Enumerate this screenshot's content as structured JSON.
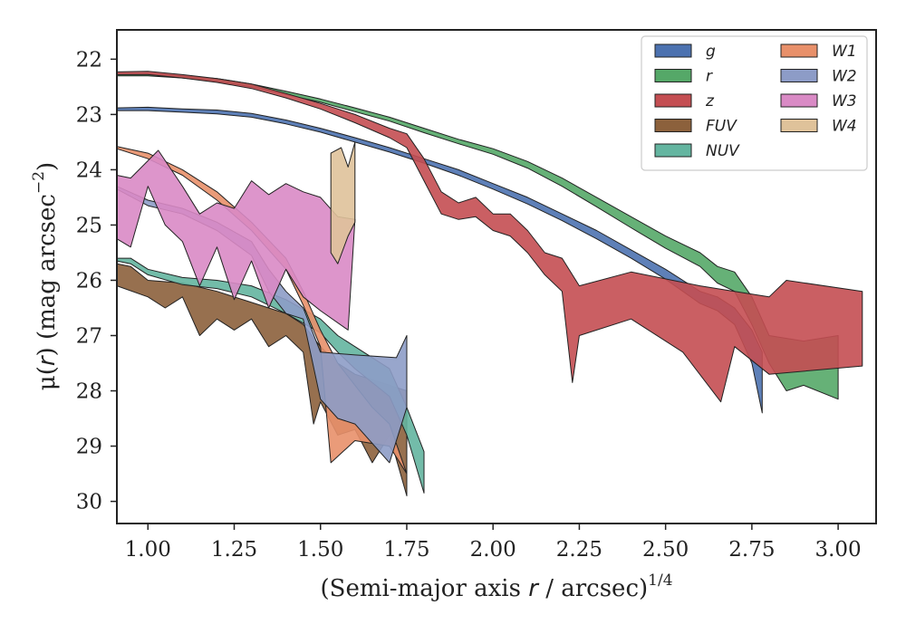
{
  "chart_data": {
    "type": "area",
    "xlabel_main": "(Semi-major axis ",
    "xlabel_var": "r",
    "xlabel_tail": " / arcsec)",
    "xlabel_exp": "1/4",
    "ylabel_main": "μ(",
    "ylabel_var": "r",
    "ylabel_tail": ") (mag arcsec",
    "ylabel_exp": "−2",
    "ylabel_close": ")",
    "xlim": [
      0.91,
      3.11
    ],
    "ylim": [
      30.4,
      21.47
    ],
    "y_inverted": true,
    "grid": false,
    "legend_position": "top-right",
    "xticks": [
      1.0,
      1.25,
      1.5,
      1.75,
      2.0,
      2.25,
      2.5,
      2.75,
      3.0
    ],
    "xtick_labels": [
      "1.00",
      "1.25",
      "1.50",
      "1.75",
      "2.00",
      "2.25",
      "2.50",
      "2.75",
      "3.00"
    ],
    "yticks": [
      22,
      23,
      24,
      25,
      26,
      27,
      28,
      29,
      30
    ],
    "ytick_labels": [
      "22",
      "23",
      "24",
      "25",
      "26",
      "27",
      "28",
      "29",
      "30"
    ],
    "series": [
      {
        "name": "g",
        "color": "#4c72b0",
        "upper": [
          [
            0.91,
            22.88
          ],
          [
            1.0,
            22.87
          ],
          [
            1.1,
            22.9
          ],
          [
            1.2,
            22.92
          ],
          [
            1.3,
            22.98
          ],
          [
            1.4,
            23.1
          ],
          [
            1.5,
            23.25
          ],
          [
            1.6,
            23.42
          ],
          [
            1.7,
            23.6
          ],
          [
            1.8,
            23.8
          ],
          [
            1.9,
            24.0
          ],
          [
            2.0,
            24.25
          ],
          [
            2.1,
            24.5
          ],
          [
            2.2,
            24.8
          ],
          [
            2.3,
            25.1
          ],
          [
            2.4,
            25.45
          ],
          [
            2.5,
            25.8
          ],
          [
            2.55,
            26.0
          ],
          [
            2.6,
            26.2
          ],
          [
            2.65,
            26.3
          ],
          [
            2.7,
            26.5
          ],
          [
            2.75,
            26.9
          ],
          [
            2.78,
            27.3
          ]
        ],
        "lower": [
          [
            0.91,
            22.93
          ],
          [
            1.0,
            22.93
          ],
          [
            1.1,
            22.96
          ],
          [
            1.2,
            22.99
          ],
          [
            1.3,
            23.05
          ],
          [
            1.4,
            23.17
          ],
          [
            1.5,
            23.32
          ],
          [
            1.6,
            23.5
          ],
          [
            1.7,
            23.68
          ],
          [
            1.8,
            23.88
          ],
          [
            1.9,
            24.1
          ],
          [
            2.0,
            24.35
          ],
          [
            2.1,
            24.62
          ],
          [
            2.2,
            24.92
          ],
          [
            2.3,
            25.25
          ],
          [
            2.4,
            25.6
          ],
          [
            2.5,
            25.98
          ],
          [
            2.55,
            26.2
          ],
          [
            2.6,
            26.42
          ],
          [
            2.65,
            26.55
          ],
          [
            2.7,
            26.8
          ],
          [
            2.75,
            27.5
          ],
          [
            2.78,
            28.4
          ]
        ]
      },
      {
        "name": "r",
        "color": "#55a868",
        "upper": [
          [
            0.91,
            22.27
          ],
          [
            1.0,
            22.26
          ],
          [
            1.1,
            22.3
          ],
          [
            1.2,
            22.35
          ],
          [
            1.3,
            22.45
          ],
          [
            1.4,
            22.58
          ],
          [
            1.5,
            22.72
          ],
          [
            1.6,
            22.88
          ],
          [
            1.7,
            23.05
          ],
          [
            1.8,
            23.25
          ],
          [
            1.9,
            23.45
          ],
          [
            2.0,
            23.62
          ],
          [
            2.1,
            23.85
          ],
          [
            2.2,
            24.15
          ],
          [
            2.3,
            24.5
          ],
          [
            2.4,
            24.85
          ],
          [
            2.5,
            25.2
          ],
          [
            2.6,
            25.5
          ],
          [
            2.65,
            25.75
          ],
          [
            2.7,
            25.85
          ],
          [
            2.75,
            26.3
          ],
          [
            2.8,
            27.0
          ],
          [
            2.9,
            27.1
          ],
          [
            3.0,
            27.0
          ]
        ],
        "lower": [
          [
            0.91,
            22.3
          ],
          [
            1.0,
            22.3
          ],
          [
            1.1,
            22.34
          ],
          [
            1.2,
            22.4
          ],
          [
            1.3,
            22.5
          ],
          [
            1.4,
            22.64
          ],
          [
            1.5,
            22.78
          ],
          [
            1.6,
            22.95
          ],
          [
            1.7,
            23.12
          ],
          [
            1.8,
            23.33
          ],
          [
            1.9,
            23.53
          ],
          [
            2.0,
            23.72
          ],
          [
            2.1,
            23.97
          ],
          [
            2.2,
            24.3
          ],
          [
            2.3,
            24.67
          ],
          [
            2.4,
            25.05
          ],
          [
            2.5,
            25.42
          ],
          [
            2.6,
            25.75
          ],
          [
            2.65,
            26.05
          ],
          [
            2.7,
            26.2
          ],
          [
            2.75,
            26.8
          ],
          [
            2.8,
            27.5
          ],
          [
            2.85,
            28.0
          ],
          [
            2.9,
            27.9
          ],
          [
            3.0,
            28.15
          ]
        ]
      },
      {
        "name": "z",
        "color": "#c44e52",
        "upper": [
          [
            0.91,
            22.23
          ],
          [
            1.0,
            22.22
          ],
          [
            1.1,
            22.28
          ],
          [
            1.2,
            22.35
          ],
          [
            1.3,
            22.45
          ],
          [
            1.4,
            22.62
          ],
          [
            1.5,
            22.8
          ],
          [
            1.6,
            23.0
          ],
          [
            1.7,
            23.25
          ],
          [
            1.75,
            23.35
          ],
          [
            1.8,
            23.8
          ],
          [
            1.85,
            24.4
          ],
          [
            1.9,
            24.6
          ],
          [
            1.95,
            24.5
          ],
          [
            2.0,
            24.8
          ],
          [
            2.05,
            24.8
          ],
          [
            2.1,
            25.1
          ],
          [
            2.15,
            25.5
          ],
          [
            2.2,
            25.6
          ],
          [
            2.25,
            26.1
          ],
          [
            2.4,
            25.85
          ],
          [
            2.6,
            26.1
          ],
          [
            2.7,
            26.2
          ],
          [
            2.8,
            26.3
          ],
          [
            2.85,
            26.0
          ],
          [
            3.07,
            26.2
          ]
        ],
        "lower": [
          [
            0.91,
            22.28
          ],
          [
            1.0,
            22.28
          ],
          [
            1.1,
            22.34
          ],
          [
            1.2,
            22.42
          ],
          [
            1.3,
            22.53
          ],
          [
            1.4,
            22.7
          ],
          [
            1.5,
            22.9
          ],
          [
            1.6,
            23.15
          ],
          [
            1.7,
            23.42
          ],
          [
            1.75,
            23.6
          ],
          [
            1.8,
            24.2
          ],
          [
            1.85,
            24.8
          ],
          [
            1.9,
            24.9
          ],
          [
            1.95,
            24.85
          ],
          [
            2.0,
            25.1
          ],
          [
            2.05,
            25.2
          ],
          [
            2.1,
            25.5
          ],
          [
            2.15,
            25.9
          ],
          [
            2.2,
            26.2
          ],
          [
            2.23,
            27.85
          ],
          [
            2.25,
            27.0
          ],
          [
            2.4,
            26.7
          ],
          [
            2.55,
            27.3
          ],
          [
            2.66,
            28.2
          ],
          [
            2.7,
            27.2
          ],
          [
            2.8,
            27.7
          ],
          [
            3.07,
            27.55
          ]
        ]
      },
      {
        "name": "FUV",
        "color": "#8c613c",
        "upper": [
          [
            0.91,
            25.7
          ],
          [
            0.95,
            25.75
          ],
          [
            1.0,
            26.0
          ],
          [
            1.1,
            26.05
          ],
          [
            1.2,
            26.2
          ],
          [
            1.3,
            26.4
          ],
          [
            1.35,
            26.5
          ],
          [
            1.4,
            26.6
          ],
          [
            1.45,
            26.8
          ],
          [
            1.5,
            27.2
          ],
          [
            1.55,
            27.5
          ],
          [
            1.6,
            27.7
          ],
          [
            1.7,
            27.9
          ],
          [
            1.75,
            28.0
          ]
        ],
        "lower": [
          [
            0.91,
            26.1
          ],
          [
            1.0,
            26.3
          ],
          [
            1.05,
            26.5
          ],
          [
            1.1,
            26.3
          ],
          [
            1.15,
            27.0
          ],
          [
            1.2,
            26.7
          ],
          [
            1.25,
            26.9
          ],
          [
            1.3,
            26.7
          ],
          [
            1.35,
            27.2
          ],
          [
            1.4,
            27.0
          ],
          [
            1.45,
            27.3
          ],
          [
            1.48,
            28.6
          ],
          [
            1.5,
            28.2
          ],
          [
            1.55,
            28.8
          ],
          [
            1.6,
            28.7
          ],
          [
            1.65,
            29.3
          ],
          [
            1.7,
            28.8
          ],
          [
            1.75,
            29.9
          ]
        ]
      },
      {
        "name": "NUV",
        "color": "#64b5a0",
        "upper": [
          [
            0.91,
            25.6
          ],
          [
            0.95,
            25.6
          ],
          [
            1.0,
            25.8
          ],
          [
            1.1,
            25.95
          ],
          [
            1.2,
            26.0
          ],
          [
            1.3,
            26.1
          ],
          [
            1.4,
            26.35
          ],
          [
            1.5,
            26.7
          ],
          [
            1.55,
            27.0
          ],
          [
            1.6,
            27.2
          ],
          [
            1.7,
            27.6
          ],
          [
            1.75,
            28.3
          ],
          [
            1.8,
            29.1
          ]
        ],
        "lower": [
          [
            0.91,
            25.65
          ],
          [
            0.95,
            25.7
          ],
          [
            1.0,
            25.9
          ],
          [
            1.1,
            26.08
          ],
          [
            1.2,
            26.15
          ],
          [
            1.3,
            26.3
          ],
          [
            1.4,
            26.6
          ],
          [
            1.5,
            26.95
          ],
          [
            1.55,
            27.3
          ],
          [
            1.6,
            27.6
          ],
          [
            1.7,
            28.1
          ],
          [
            1.75,
            28.8
          ],
          [
            1.8,
            29.85
          ]
        ]
      },
      {
        "name": "W1",
        "color": "#e8906a",
        "upper": [
          [
            0.91,
            23.58
          ],
          [
            1.0,
            23.7
          ],
          [
            1.1,
            24.0
          ],
          [
            1.2,
            24.4
          ],
          [
            1.3,
            24.95
          ],
          [
            1.4,
            25.6
          ],
          [
            1.45,
            26.2
          ],
          [
            1.5,
            26.9
          ],
          [
            1.55,
            27.5
          ],
          [
            1.6,
            27.9
          ],
          [
            1.65,
            28.3
          ],
          [
            1.7,
            28.6
          ]
        ],
        "lower": [
          [
            0.91,
            23.62
          ],
          [
            1.0,
            23.8
          ],
          [
            1.1,
            24.1
          ],
          [
            1.2,
            24.55
          ],
          [
            1.3,
            25.1
          ],
          [
            1.4,
            25.8
          ],
          [
            1.45,
            26.45
          ],
          [
            1.5,
            27.2
          ],
          [
            1.53,
            29.3
          ],
          [
            1.6,
            28.9
          ],
          [
            1.7,
            29.0
          ],
          [
            1.75,
            29.5
          ]
        ]
      },
      {
        "name": "W2",
        "color": "#8d9cc7",
        "upper": [
          [
            0.91,
            24.3
          ],
          [
            1.0,
            24.55
          ],
          [
            1.1,
            24.7
          ],
          [
            1.2,
            24.95
          ],
          [
            1.3,
            25.3
          ],
          [
            1.35,
            25.8
          ],
          [
            1.4,
            26.2
          ],
          [
            1.45,
            26.5
          ],
          [
            1.5,
            27.3
          ],
          [
            1.6,
            27.35
          ],
          [
            1.72,
            27.4
          ],
          [
            1.75,
            27.0
          ]
        ],
        "lower": [
          [
            0.91,
            24.35
          ],
          [
            1.0,
            24.65
          ],
          [
            1.1,
            24.8
          ],
          [
            1.2,
            25.1
          ],
          [
            1.3,
            25.55
          ],
          [
            1.35,
            26.2
          ],
          [
            1.4,
            26.6
          ],
          [
            1.45,
            26.7
          ],
          [
            1.5,
            28.15
          ],
          [
            1.55,
            28.5
          ],
          [
            1.6,
            28.6
          ],
          [
            1.7,
            29.3
          ],
          [
            1.75,
            28.3
          ]
        ]
      },
      {
        "name": "W3",
        "color": "#d98ac5",
        "upper": [
          [
            0.91,
            24.1
          ],
          [
            0.95,
            24.15
          ],
          [
            1.03,
            23.65
          ],
          [
            1.1,
            24.3
          ],
          [
            1.15,
            24.8
          ],
          [
            1.2,
            24.6
          ],
          [
            1.25,
            24.7
          ],
          [
            1.3,
            24.2
          ],
          [
            1.35,
            24.45
          ],
          [
            1.4,
            24.25
          ],
          [
            1.45,
            24.4
          ],
          [
            1.5,
            24.5
          ],
          [
            1.55,
            24.85
          ],
          [
            1.6,
            24.9
          ]
        ],
        "lower": [
          [
            0.91,
            25.25
          ],
          [
            0.95,
            25.4
          ],
          [
            1.0,
            24.3
          ],
          [
            1.05,
            25.0
          ],
          [
            1.1,
            25.3
          ],
          [
            1.15,
            26.1
          ],
          [
            1.2,
            25.4
          ],
          [
            1.25,
            26.35
          ],
          [
            1.3,
            25.65
          ],
          [
            1.35,
            26.5
          ],
          [
            1.4,
            25.8
          ],
          [
            1.45,
            26.3
          ],
          [
            1.5,
            26.55
          ],
          [
            1.58,
            26.9
          ]
        ]
      },
      {
        "name": "W4",
        "color": "#dfc29a",
        "upper": [
          [
            1.53,
            23.7
          ],
          [
            1.56,
            23.6
          ],
          [
            1.58,
            23.95
          ],
          [
            1.6,
            23.5
          ]
        ],
        "lower": [
          [
            1.53,
            25.5
          ],
          [
            1.55,
            25.7
          ],
          [
            1.58,
            25.2
          ],
          [
            1.6,
            24.95
          ]
        ]
      }
    ]
  }
}
